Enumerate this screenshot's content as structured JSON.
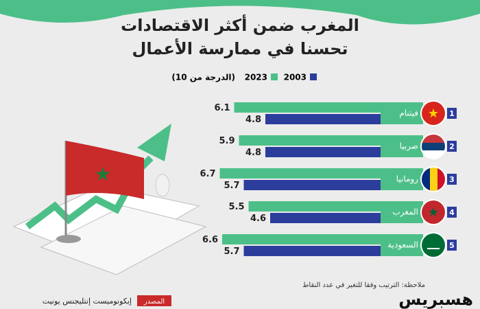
{
  "chart_data": {
    "type": "bar",
    "orientation": "horizontal",
    "title": [
      "المغرب ضمن أكثر الاقتصادات",
      "تحسنا في ممارسة الأعمال"
    ],
    "legend_note": "(الدرجة من 10)",
    "categories": [
      "فيتنام",
      "صربيا",
      "رومانيا",
      "المغرب",
      "السعودية"
    ],
    "ranks": [
      1,
      2,
      3,
      4,
      5
    ],
    "series": [
      {
        "name": "2023",
        "color": "#4cbf88",
        "values": [
          6.1,
          5.9,
          6.7,
          5.5,
          6.6
        ]
      },
      {
        "name": "2003",
        "color": "#2c3d9c",
        "values": [
          4.8,
          4.8,
          5.7,
          4.6,
          5.7
        ]
      }
    ],
    "footnote": "ملاحظة: الترتيب وفقا للتغير في عدد النقاط",
    "source_label": "المصدر",
    "source": "إيكونوميست إنتليجنس يونيت",
    "logo": "هسبريس"
  }
}
